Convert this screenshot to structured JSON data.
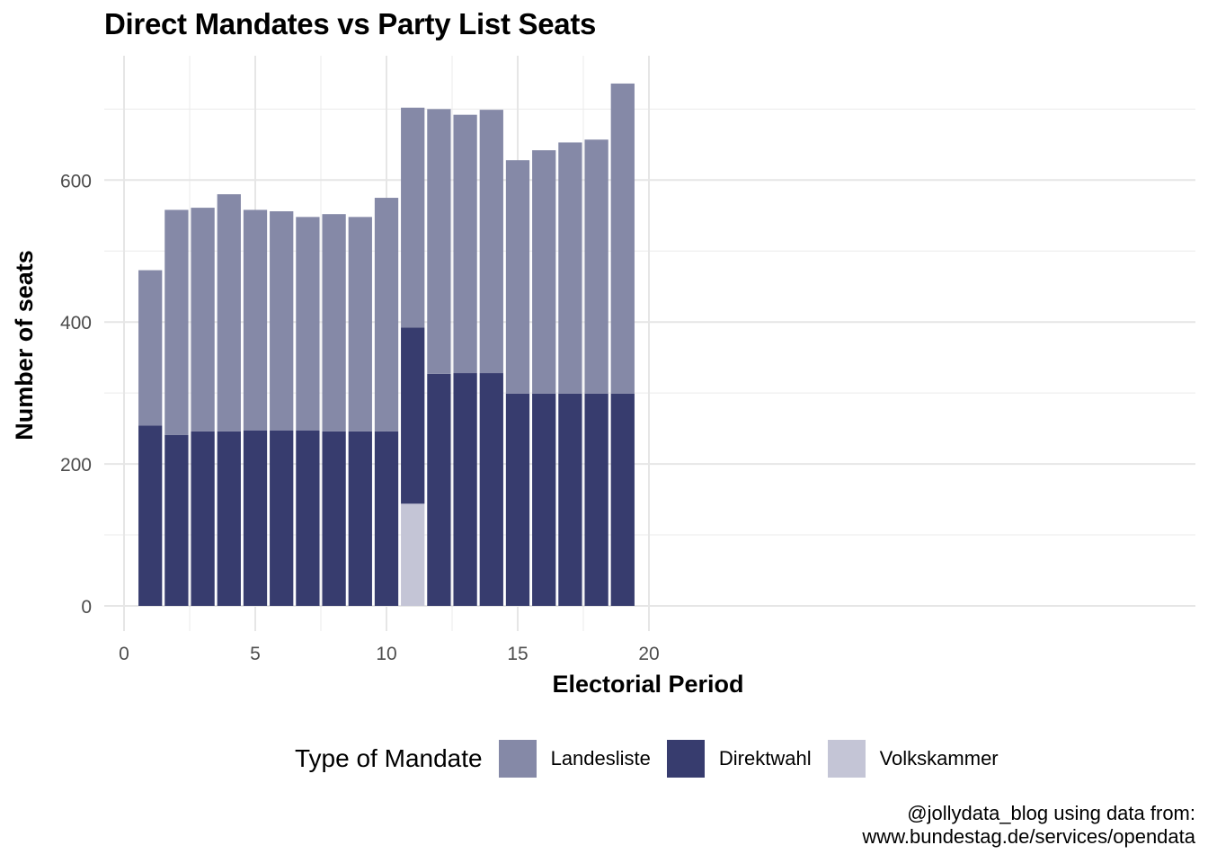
{
  "chart_data": {
    "type": "bar",
    "stacked": true,
    "title": "Direct Mandates vs Party List Seats",
    "xlabel": "Electorial Period",
    "ylabel": "Number of seats",
    "xlim": [
      0,
      20
    ],
    "ylim": [
      0,
      740
    ],
    "xticks": [
      0,
      5,
      10,
      15,
      20
    ],
    "yticks": [
      0,
      200,
      400,
      600
    ],
    "grid": true,
    "legend_title": "Type of Mandate",
    "legend_position": "bottom",
    "x": [
      1,
      2,
      3,
      4,
      5,
      6,
      7,
      8,
      9,
      10,
      11,
      12,
      13,
      14,
      15,
      16,
      17,
      18,
      19
    ],
    "series": [
      {
        "name": "Volkskammer",
        "color": "#c4c5d6",
        "values": [
          0,
          0,
          0,
          0,
          0,
          0,
          0,
          0,
          0,
          0,
          144,
          0,
          0,
          0,
          0,
          0,
          0,
          0,
          0
        ]
      },
      {
        "name": "Direktwahl",
        "color": "#373c6e",
        "values": [
          254,
          241,
          246,
          246,
          247,
          247,
          247,
          246,
          246,
          246,
          248,
          327,
          328,
          328,
          299,
          299,
          299,
          299,
          299
        ]
      },
      {
        "name": "Landesliste",
        "color": "#8589a7",
        "values": [
          219,
          317,
          315,
          334,
          311,
          309,
          301,
          306,
          302,
          329,
          310,
          373,
          364,
          371,
          329,
          343,
          354,
          358,
          437
        ]
      }
    ],
    "legend_order": [
      "Landesliste",
      "Direktwahl",
      "Volkskammer"
    ]
  },
  "caption": {
    "line1": "@jollydata_blog using data from:",
    "line2": "www.bundestag.de/services/opendata"
  }
}
